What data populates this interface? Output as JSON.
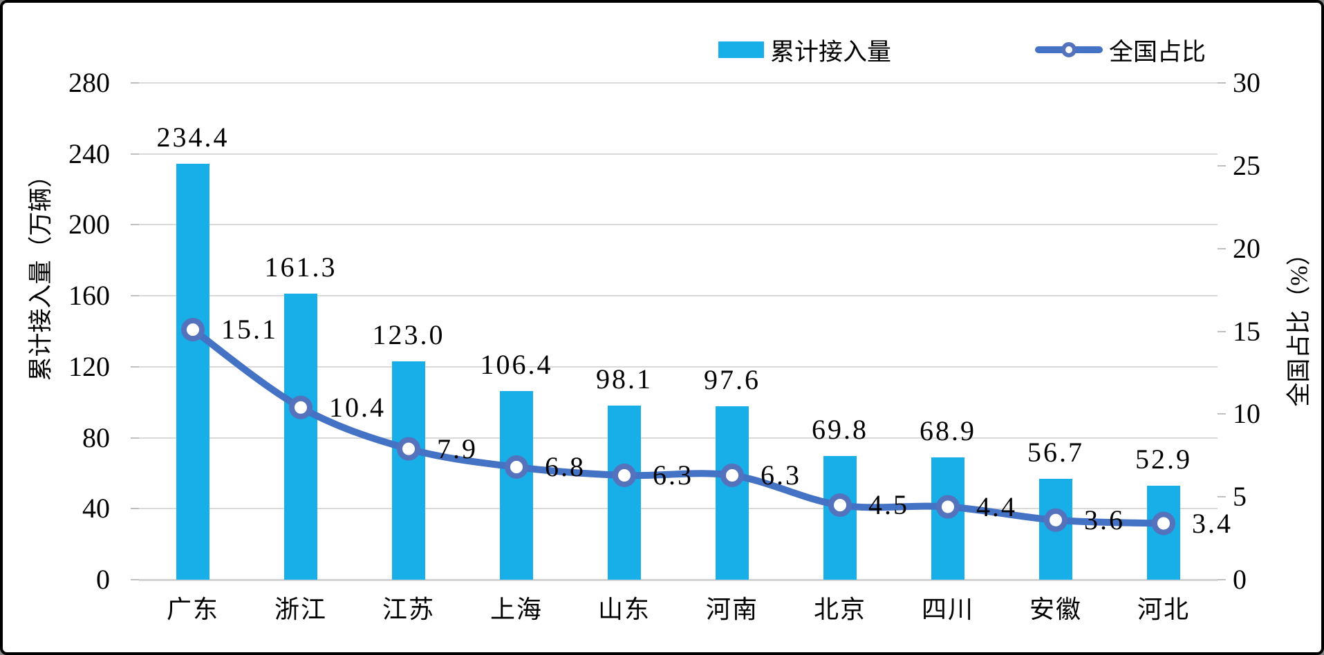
{
  "chart_data": {
    "type": "bar",
    "combo": "bar+line",
    "categories": [
      "广东",
      "浙江",
      "江苏",
      "上海",
      "山东",
      "河南",
      "北京",
      "四川",
      "安徽",
      "河北"
    ],
    "series": [
      {
        "name": "累计接入量",
        "type": "bar",
        "axis": "left",
        "color": "#18aee8",
        "values": [
          234.4,
          161.3,
          123.0,
          106.4,
          98.1,
          97.6,
          69.8,
          68.9,
          56.7,
          52.9
        ],
        "value_labels": [
          "234.4",
          "161.3",
          "123.0",
          "106.4",
          "98.1",
          "97.6",
          "69.8",
          "68.9",
          "56.7",
          "52.9"
        ]
      },
      {
        "name": "全国占比",
        "type": "line",
        "axis": "right",
        "color": "#4472c4",
        "marker_ring_color": "#5572bd",
        "marker_fill": "#ffffff",
        "values": [
          15.1,
          10.4,
          7.9,
          6.8,
          6.3,
          6.3,
          4.5,
          4.4,
          3.6,
          3.4
        ],
        "value_labels": [
          "15.1",
          "10.4",
          "7.9",
          "6.8",
          "6.3",
          "6.3",
          "4.5",
          "4.4",
          "3.6",
          "3.4"
        ]
      }
    ],
    "left_axis": {
      "title": "累计接入量（万辆）",
      "min": 0,
      "max": 280,
      "step": 40,
      "ticks": [
        "0",
        "40",
        "80",
        "120",
        "160",
        "200",
        "240",
        "280"
      ]
    },
    "right_axis": {
      "title": "全国占比（%）",
      "min": 0,
      "max": 30,
      "step": 5,
      "ticks": [
        "0",
        "5",
        "10",
        "15",
        "20",
        "25",
        "30"
      ]
    },
    "grid": true,
    "legend_position": "top-right",
    "gridline_color": "#d9d9d9",
    "background_color": "#ffffff"
  }
}
